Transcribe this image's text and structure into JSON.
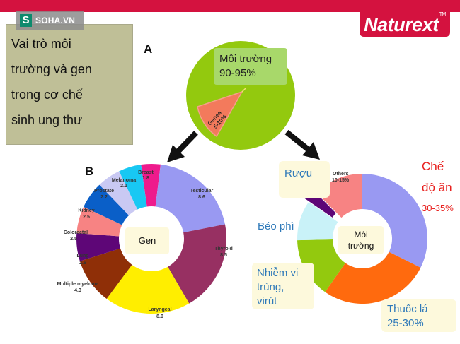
{
  "header": {
    "brand": "Naturext",
    "brand_tm": "TM",
    "source_logo_letter": "S",
    "source_logo_text": "SOHA.VN",
    "accent_color": "#d4123f"
  },
  "title_box": {
    "lines": [
      "Vai trò môi",
      "trường và gen",
      "trong cơ chế",
      "sinh ung thư"
    ]
  },
  "panel_a": {
    "label": "A",
    "env_label": "Môi trường",
    "env_value": "90-95%",
    "genes_label": "Genes",
    "genes_value": "5-10%"
  },
  "panel_b": {
    "label": "B",
    "center_label": "Gen",
    "segments": [
      {
        "name": "Breast",
        "value": "1.8"
      },
      {
        "name": "Testicular",
        "value": "8.6"
      },
      {
        "name": "Thyroid",
        "value": "8.5"
      },
      {
        "name": "Laryngeal",
        "value": "8.0"
      },
      {
        "name": "Multiple myeloma",
        "value": "4.3"
      },
      {
        "name": "Lung",
        "value": "2.6"
      },
      {
        "name": "Colorectal",
        "value": "2.5"
      },
      {
        "name": "Kidney",
        "value": "2.5"
      },
      {
        "name": "Prostate",
        "value": "2.2"
      },
      {
        "name": "Melanoma",
        "value": "2.1"
      }
    ]
  },
  "panel_c": {
    "center_label_1": "Môi",
    "center_label_2": "trường",
    "others_label": "Others",
    "others_value": "10-15%",
    "diet_1": "Chế",
    "diet_2": "độ ăn",
    "diet_value": "30-35%",
    "tobacco": "Thuốc lá",
    "tobacco_value": "25-30%",
    "infection_1": "Nhiễm vi",
    "infection_2": "trùng,",
    "infection_3": "virút",
    "obesity": "Béo phì",
    "alcohol": "Rượu"
  },
  "chart_data": [
    {
      "type": "pie",
      "title": "A",
      "categories": [
        "Môi trường",
        "Genes"
      ],
      "values": [
        92.5,
        7.5
      ],
      "labels": [
        "90-95%",
        "5-10%"
      ],
      "colors": [
        "#93c90e",
        "#f37a5c"
      ]
    },
    {
      "type": "pie",
      "title": "B",
      "subtitle": "Gen",
      "donut": true,
      "categories": [
        "Breast",
        "Testicular",
        "Thyroid",
        "Laryngeal",
        "Multiple myeloma",
        "Lung",
        "Colorectal",
        "Kidney",
        "Prostate",
        "Melanoma"
      ],
      "values": [
        1.8,
        8.6,
        8.5,
        8.0,
        4.3,
        2.6,
        2.5,
        2.5,
        2.2,
        2.1
      ],
      "colors": [
        "#ee1b8c",
        "#9999f2",
        "#973062",
        "#ffee00",
        "#8f2f07",
        "#5e0677",
        "#f78383",
        "#0a5fc8",
        "#c9c9f3",
        "#18c8f3"
      ]
    },
    {
      "type": "pie",
      "title": "Môi trường",
      "donut": true,
      "categories": [
        "Chế độ ăn",
        "Thuốc lá",
        "Nhiễm vi trùng, virút",
        "Béo phì",
        "Rượu",
        "Others"
      ],
      "values": [
        32.5,
        27.5,
        15,
        10,
        3,
        12.5
      ],
      "labels": [
        "30-35%",
        "25-30%",
        "",
        "",
        "",
        "10-15%"
      ],
      "colors": [
        "#9999f2",
        "#ff6a0e",
        "#93c90e",
        "#c9f2f8",
        "#5e0677",
        "#f78383"
      ]
    }
  ]
}
